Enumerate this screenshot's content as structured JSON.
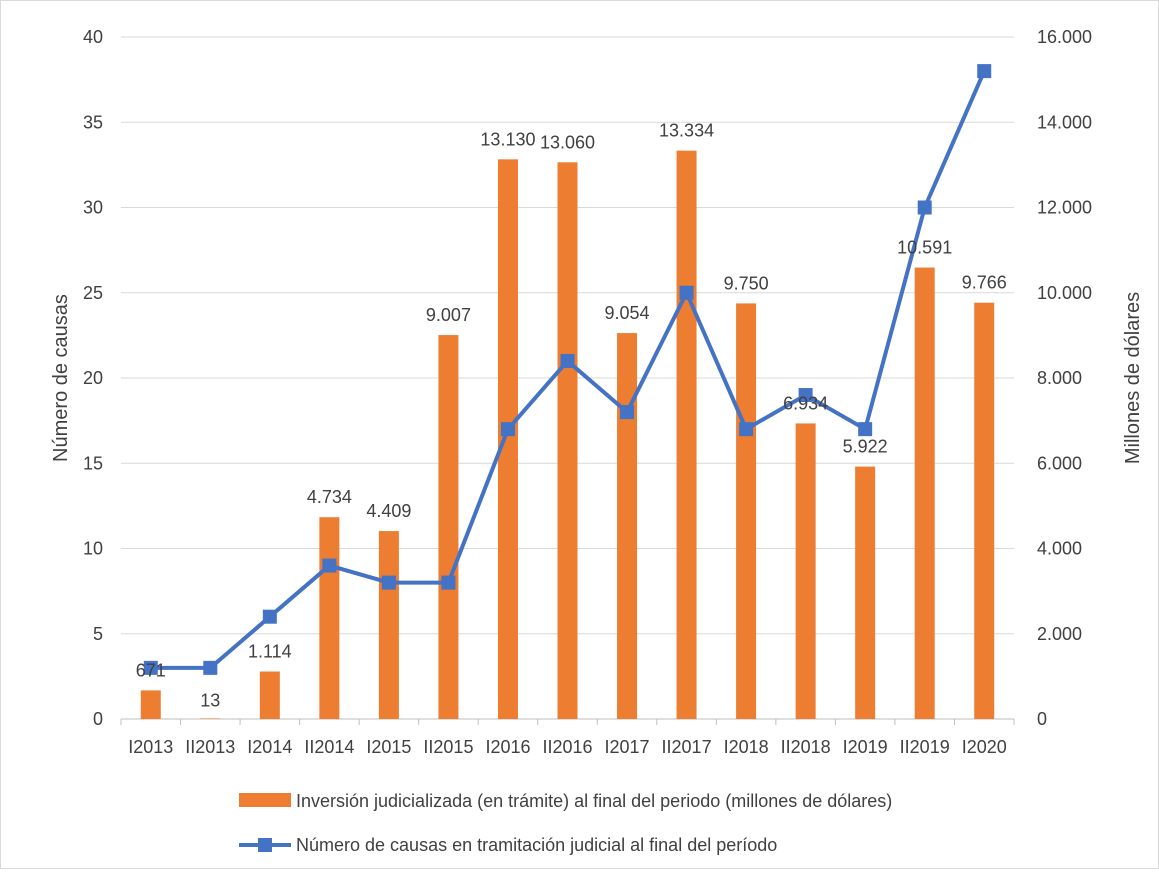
{
  "chart_data": {
    "type": "bar",
    "title": "",
    "categories": [
      "I2013",
      "II2013",
      "I2014",
      "II2014",
      "I2015",
      "II2015",
      "I2016",
      "II2016",
      "I2017",
      "II2017",
      "I2018",
      "II2018",
      "I2019",
      "II2019",
      "I2020"
    ],
    "ylabel_left": "Número de causas",
    "ylabel_right": "Millones de dólares",
    "y_left": {
      "min": 0,
      "max": 40,
      "step": 5,
      "ticks": [
        "0",
        "5",
        "10",
        "15",
        "20",
        "25",
        "30",
        "35",
        "40"
      ]
    },
    "y_right": {
      "min": 0,
      "max": 16000,
      "step": 2000,
      "ticks": [
        "0",
        "2.000",
        "4.000",
        "6.000",
        "8.000",
        "10.000",
        "12.000",
        "14.000",
        "16.000"
      ]
    },
    "grid": true,
    "legend_position": "bottom",
    "series": [
      {
        "name": "Inversión judicializada (en trámite) al final del periodo (millones de dólares)",
        "type": "bar",
        "axis": "right",
        "color": "#ED7D31",
        "values": [
          671,
          13,
          1114,
          4734,
          4409,
          9007,
          13130,
          13060,
          9054,
          13334,
          9750,
          6934,
          5922,
          10591,
          9766
        ],
        "labels": [
          "671",
          "13",
          "1.114",
          "4.734",
          "4.409",
          "9.007",
          "13.130",
          "13.060",
          "9.054",
          "13.334",
          "9.750",
          "6.934",
          "5.922",
          "10.591",
          "9.766"
        ]
      },
      {
        "name": "Número de causas en tramitación judicial al final del período",
        "type": "line",
        "axis": "left",
        "color": "#4472C4",
        "marker": "square",
        "values": [
          3,
          3,
          6,
          9,
          8,
          8,
          17,
          21,
          18,
          25,
          17,
          19,
          17,
          30,
          38
        ]
      }
    ]
  }
}
